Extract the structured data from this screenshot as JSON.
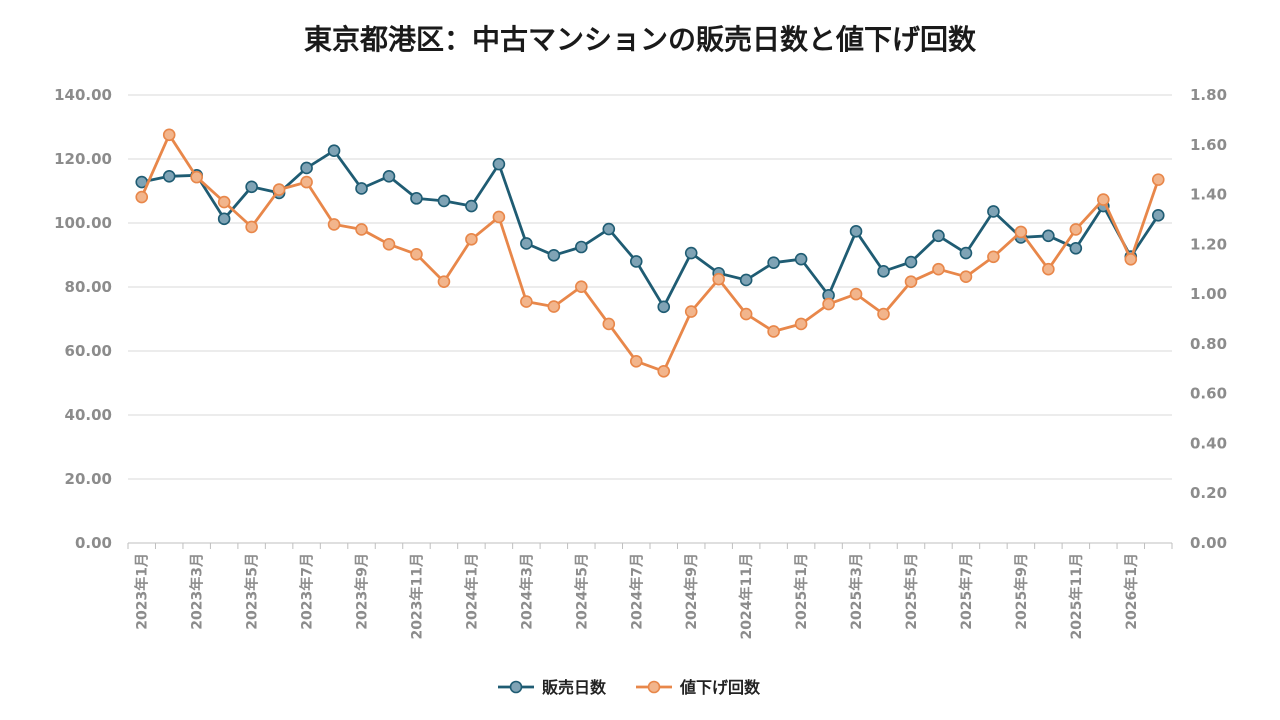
{
  "chart_data": {
    "type": "line",
    "title": "東京都港区：中古マンションの販売日数と値下げ回数",
    "x": [
      "2023年1月",
      "2023年2月",
      "2023年3月",
      "2023年4月",
      "2023年5月",
      "2023年6月",
      "2023年7月",
      "2023年8月",
      "2023年9月",
      "2023年10月",
      "2023年11月",
      "2023年12月",
      "2024年1月",
      "2024年2月",
      "2024年3月",
      "2024年4月",
      "2024年5月",
      "2024年6月",
      "2024年7月",
      "2024年8月",
      "2024年9月",
      "2024年10月",
      "2024年11月",
      "2024年12月",
      "2025年1月",
      "2025年2月",
      "2025年3月",
      "2025年4月",
      "2025年5月",
      "2025年6月",
      "2025年7月",
      "2025年8月",
      "2025年9月",
      "2025年10月",
      "2025年11月",
      "2025年12月",
      "2026年1月",
      "2026年2月"
    ],
    "x_tick_labels": [
      "2023年1月",
      "2023年3月",
      "2023年5月",
      "2023年7月",
      "2023年9月",
      "2023年11月",
      "2024年1月",
      "2024年3月",
      "2024年5月",
      "2024年7月",
      "2024年9月",
      "2024年11月",
      "2025年1月",
      "2025年3月",
      "2025年5月",
      "2025年7月",
      "2025年9月",
      "2025年11月",
      "2026年1月"
    ],
    "y_left": {
      "range": [
        0,
        140
      ],
      "ticks": [
        "0.00",
        "20.00",
        "40.00",
        "60.00",
        "80.00",
        "100.00",
        "120.00",
        "140.00"
      ]
    },
    "y_right": {
      "range": [
        0,
        1.8
      ],
      "ticks": [
        "0.00",
        "0.20",
        "0.40",
        "0.60",
        "0.80",
        "1.00",
        "1.20",
        "1.40",
        "1.60",
        "1.80"
      ]
    },
    "grid": true,
    "legend_position": "bottom",
    "series": [
      {
        "name": "販売日数",
        "axis": "left",
        "color": "#1f5c73",
        "marker_fill": "#7fa3b5",
        "values": [
          112.8,
          114.6,
          114.9,
          101.3,
          111.3,
          109.4,
          117.2,
          122.6,
          110.8,
          114.6,
          107.7,
          106.9,
          105.3,
          118.4,
          93.6,
          89.9,
          92.5,
          98.1,
          88.0,
          73.8,
          90.6,
          84.3,
          82.2,
          87.6,
          88.7,
          77.4,
          97.4,
          84.9,
          87.8,
          96.0,
          90.6,
          103.6,
          95.5,
          96.0,
          92.1,
          105.3,
          89.5,
          102.4
        ]
      },
      {
        "name": "値下げ回数",
        "axis": "right",
        "color": "#e8874a",
        "marker_fill": "#f2b58c",
        "values": [
          1.39,
          1.64,
          1.47,
          1.37,
          1.27,
          1.42,
          1.45,
          1.28,
          1.26,
          1.2,
          1.16,
          1.05,
          1.22,
          1.31,
          0.97,
          0.95,
          1.03,
          0.88,
          0.73,
          0.69,
          0.93,
          1.06,
          0.92,
          0.85,
          0.88,
          0.96,
          1.0,
          0.92,
          1.05,
          1.1,
          1.07,
          1.15,
          1.25,
          1.1,
          1.26,
          1.38,
          1.14,
          1.46
        ]
      }
    ]
  }
}
